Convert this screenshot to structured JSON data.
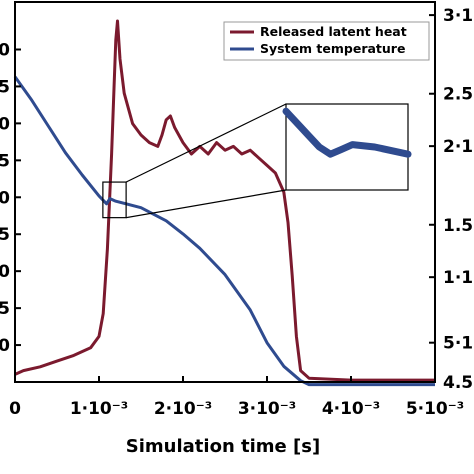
{
  "chart_data": {
    "type": "line",
    "xlabel": "Simulation time [s]",
    "x_ticks": [
      "0",
      "1·10⁻³",
      "2·10⁻³",
      "3·10⁻³",
      "4·10⁻³",
      "5·10⁻³"
    ],
    "x_tick_values": [
      0,
      0.001,
      0.002,
      0.003,
      0.004,
      0.005
    ],
    "xlim": [
      0,
      0.005
    ],
    "left_ticks": [
      "0",
      "5",
      "0",
      "5",
      "0",
      "5",
      "0",
      "5",
      "0"
    ],
    "left_tick_values": [
      0.875,
      0.7778,
      0.6806,
      0.5833,
      0.4861,
      0.3889,
      0.2917,
      0.1944,
      0.0972
    ],
    "right_ticks": [
      "3·1",
      "2.5",
      "2·1",
      "1.5",
      "1·1",
      "5·1",
      "4.5"
    ],
    "right_tick_values": [
      3.1,
      2.5,
      2.1,
      1.5,
      1.1,
      0.6,
      0.3
    ],
    "right_ylim": [
      0.3,
      3.2
    ],
    "legend_position": "top-right",
    "series": [
      {
        "name": "Released latent heat",
        "color": "#7b1a2e",
        "axis": "left",
        "points": [
          [
            0,
            0.02
          ],
          [
            0.0001,
            0.03
          ],
          [
            0.0003,
            0.04
          ],
          [
            0.0005,
            0.055
          ],
          [
            0.0007,
            0.07
          ],
          [
            0.0009,
            0.09
          ],
          [
            0.001,
            0.12
          ],
          [
            0.00105,
            0.18
          ],
          [
            0.0011,
            0.35
          ],
          [
            0.00115,
            0.6
          ],
          [
            0.00118,
            0.78
          ],
          [
            0.0012,
            0.9
          ],
          [
            0.00122,
            0.95
          ],
          [
            0.00125,
            0.85
          ],
          [
            0.0013,
            0.76
          ],
          [
            0.0014,
            0.68
          ],
          [
            0.0015,
            0.65
          ],
          [
            0.0016,
            0.63
          ],
          [
            0.0017,
            0.62
          ],
          [
            0.00175,
            0.65
          ],
          [
            0.0018,
            0.69
          ],
          [
            0.00185,
            0.7
          ],
          [
            0.0019,
            0.67
          ],
          [
            0.002,
            0.63
          ],
          [
            0.0021,
            0.6
          ],
          [
            0.0022,
            0.62
          ],
          [
            0.0023,
            0.6
          ],
          [
            0.0024,
            0.63
          ],
          [
            0.0025,
            0.61
          ],
          [
            0.0026,
            0.62
          ],
          [
            0.0027,
            0.6
          ],
          [
            0.0028,
            0.61
          ],
          [
            0.0029,
            0.59
          ],
          [
            0.003,
            0.57
          ],
          [
            0.0031,
            0.55
          ],
          [
            0.0032,
            0.5
          ],
          [
            0.00325,
            0.42
          ],
          [
            0.0033,
            0.28
          ],
          [
            0.00335,
            0.12
          ],
          [
            0.0034,
            0.03
          ],
          [
            0.0035,
            0.01
          ],
          [
            0.004,
            0.005
          ],
          [
            0.0045,
            0.005
          ],
          [
            0.005,
            0.005
          ]
        ]
      },
      {
        "name": "System temperature",
        "color": "#2f4b8f",
        "axis": "right",
        "points": [
          [
            0,
            2.63
          ],
          [
            0.0002,
            2.45
          ],
          [
            0.0004,
            2.25
          ],
          [
            0.0006,
            2.05
          ],
          [
            0.0008,
            1.88
          ],
          [
            0.001,
            1.72
          ],
          [
            0.00109,
            1.66
          ],
          [
            0.00113,
            1.7
          ],
          [
            0.0012,
            1.68
          ],
          [
            0.0015,
            1.63
          ],
          [
            0.0018,
            1.53
          ],
          [
            0.002,
            1.43
          ],
          [
            0.0022,
            1.32
          ],
          [
            0.0025,
            1.12
          ],
          [
            0.0028,
            0.85
          ],
          [
            0.003,
            0.6
          ],
          [
            0.0032,
            0.42
          ],
          [
            0.0034,
            0.31
          ],
          [
            0.0035,
            0.28
          ],
          [
            0.004,
            0.28
          ],
          [
            0.005,
            0.28
          ]
        ]
      }
    ],
    "inset": {
      "x_range": [
        0.00107,
        0.00118
      ],
      "y_range": [
        1.6,
        1.78
      ]
    }
  }
}
